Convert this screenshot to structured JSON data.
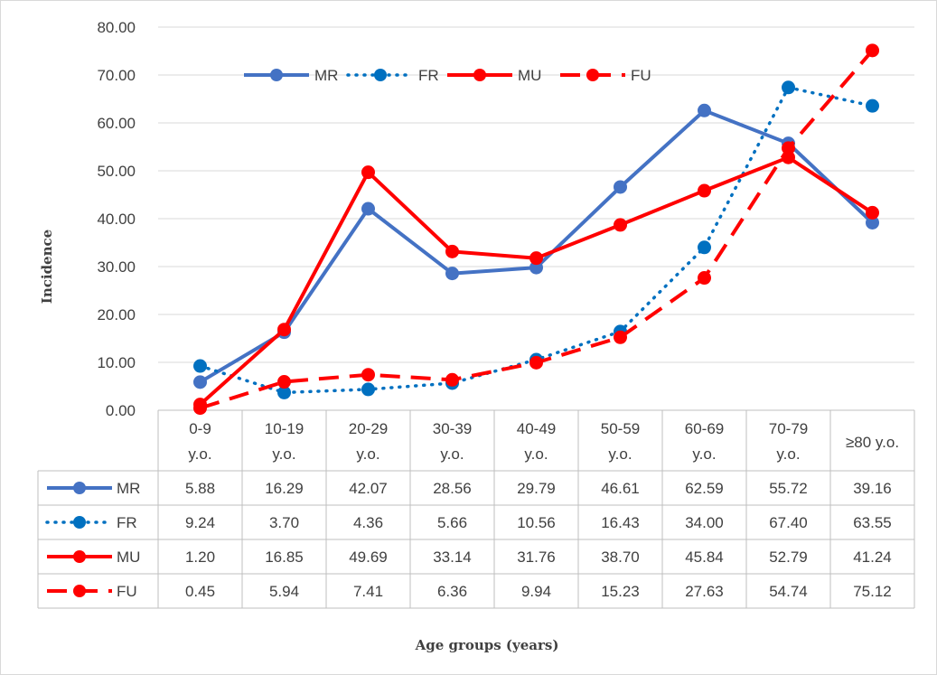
{
  "chart_data": {
    "type": "line",
    "title": "",
    "xlabel": "Age groups (years)",
    "ylabel": "Incidence",
    "ylim": [
      0,
      80
    ],
    "yticks": [
      "0.00",
      "10.00",
      "20.00",
      "30.00",
      "40.00",
      "50.00",
      "60.00",
      "70.00",
      "80.00"
    ],
    "grid": true,
    "legend_position": "top-center",
    "categories": [
      [
        "0-9",
        "y.o."
      ],
      [
        "10-19",
        "y.o."
      ],
      [
        "20-29",
        "y.o."
      ],
      [
        "30-39",
        "y.o."
      ],
      [
        "40-49",
        "y.o."
      ],
      [
        "50-59",
        "y.o."
      ],
      [
        "60-69",
        "y.o."
      ],
      [
        "70-79",
        "y.o."
      ],
      [
        "≥80 y.o."
      ]
    ],
    "series": [
      {
        "name": "MR",
        "style": "solid",
        "color": "#4472C4",
        "values": [
          5.88,
          16.29,
          42.07,
          28.56,
          29.79,
          46.61,
          62.59,
          55.72,
          39.16
        ],
        "labels": [
          "5.88",
          "16.29",
          "42.07",
          "28.56",
          "29.79",
          "46.61",
          "62.59",
          "55.72",
          "39.16"
        ]
      },
      {
        "name": "FR",
        "style": "dotted",
        "color": "#0070C0",
        "values": [
          9.24,
          3.7,
          4.36,
          5.66,
          10.56,
          16.43,
          34.0,
          67.4,
          63.55
        ],
        "labels": [
          "9.24",
          "3.70",
          "4.36",
          "5.66",
          "10.56",
          "16.43",
          "34.00",
          "67.40",
          "63.55"
        ]
      },
      {
        "name": "MU",
        "style": "solid",
        "color": "#FF0000",
        "values": [
          1.2,
          16.85,
          49.69,
          33.14,
          31.76,
          38.7,
          45.84,
          52.79,
          41.24
        ],
        "labels": [
          "1.20",
          "16.85",
          "49.69",
          "33.14",
          "31.76",
          "38.70",
          "45.84",
          "52.79",
          "41.24"
        ]
      },
      {
        "name": "FU",
        "style": "dashed",
        "color": "#FF0000",
        "values": [
          0.45,
          5.94,
          7.41,
          6.36,
          9.94,
          15.23,
          27.63,
          54.74,
          75.12
        ],
        "labels": [
          "0.45",
          "5.94",
          "7.41",
          "6.36",
          "9.94",
          "15.23",
          "27.63",
          "54.74",
          "75.12"
        ]
      }
    ]
  }
}
